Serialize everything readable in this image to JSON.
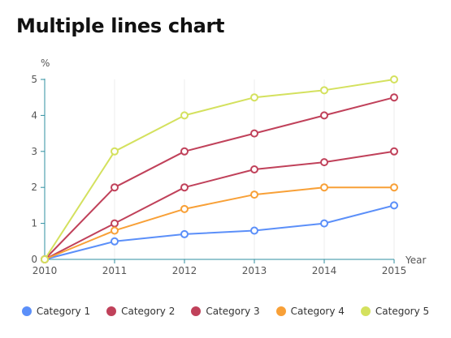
{
  "title": "Multiple lines chart",
  "chart_data": {
    "type": "line",
    "title": "Multiple lines chart",
    "xlabel": "Year",
    "ylabel": "%",
    "x": [
      "2010",
      "2011",
      "2012",
      "2013",
      "2014",
      "2015"
    ],
    "yticks": [
      "0",
      "1",
      "2",
      "3",
      "4",
      "5"
    ],
    "ylim": [
      0,
      5
    ],
    "grid": "vertical",
    "legend": "bottom",
    "series": [
      {
        "name": "Category 1",
        "color": "#5b8ff9",
        "values": [
          0,
          0.5,
          0.7,
          0.8,
          1.0,
          1.5
        ]
      },
      {
        "name": "Category 2",
        "color": "#c0415a",
        "values": [
          0,
          2.0,
          3.0,
          3.5,
          4.0,
          4.5
        ]
      },
      {
        "name": "Category 3",
        "color": "#c0415a",
        "values": [
          0,
          1.0,
          2.0,
          2.5,
          2.7,
          3.0
        ]
      },
      {
        "name": "Category 4",
        "color": "#f8a037",
        "values": [
          0,
          0.8,
          1.4,
          1.8,
          2.0,
          2.0
        ]
      },
      {
        "name": "Category 5",
        "color": "#d4e15e",
        "values": [
          0,
          3.0,
          4.0,
          4.5,
          4.7,
          5.0
        ]
      }
    ]
  }
}
